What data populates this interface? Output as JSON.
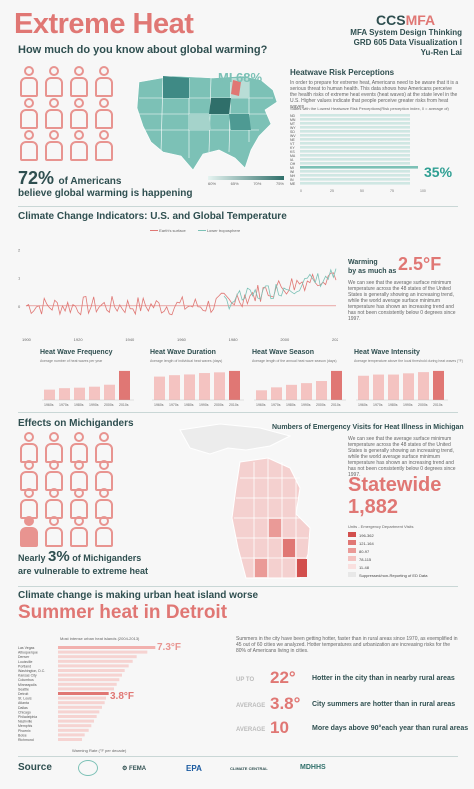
{
  "header": {
    "title": "Extreme Heat",
    "subtitle": "How much do you know about global warming?",
    "logo_left": "CCS",
    "logo_right": "MFA",
    "credits": [
      "MFA System Design Thinking",
      "GRD 605 Data Visualization I",
      "Yu-Ren Lai"
    ]
  },
  "awareness": {
    "pct": "72%",
    "text_1": "of Americans",
    "text_2": "believe global warming is happening",
    "map_label": "MI 68%",
    "legend": [
      "60%",
      "65%",
      "70%",
      "75%"
    ]
  },
  "risk": {
    "title": "Heatwave Risk Perceptions",
    "body": "In order to prepare for extreme heat, Americans need to be aware that it is a serious threat to human health. This data shows how Americans perceive the health risks of extreme heat events (heat waves) at the state level in the U.S. Higher values indicate that people perceive greater risks from heat waves",
    "chart_caption": "States with the Lowest Heatwave Risk Perceptions(Risk perception index, 0 = average of)",
    "highlight": "35%",
    "states": [
      "ND",
      "MN",
      "MT",
      "WY",
      "SD",
      "WV",
      "NE",
      "VT",
      "KY",
      "KS",
      "MA",
      "IA",
      "OH",
      "MI",
      "WI",
      "NH",
      "IN",
      "ME"
    ]
  },
  "climate": {
    "title": "Climate Change Indicators: U.S. and Global Temperature",
    "legend": [
      "Earth's surface",
      "Lower troposphere"
    ],
    "warming_label_1": "Warming",
    "warming_label_2": "by as much as",
    "warming_value": "2.5°F",
    "body": "We can see that the average surface minimum temperature across the 48 states of the United States is generally showing an increasing trend, while the world average surface minimum temperature has shown an increasing trend and has not been consistently below 0 degrees since 1997.",
    "x_ticks": [
      "1900",
      "1920",
      "1940",
      "1960",
      "1980",
      "2000",
      "2020"
    ]
  },
  "heatwave_charts": [
    {
      "title": "Heat Wave Frequency",
      "caption": "Average number of heat waves per year",
      "values": [
        2.1,
        2.4,
        2.5,
        2.7,
        3.1,
        5.9
      ]
    },
    {
      "title": "Heat Wave Duration",
      "caption": "Average length of individual heat waves (days)",
      "values": [
        3.3,
        3.5,
        3.6,
        3.8,
        3.9,
        4.1
      ]
    },
    {
      "title": "Heat Wave Season",
      "caption": "Average length of the annual heat wave season (days)",
      "values": [
        23,
        30,
        36,
        40,
        45,
        69
      ]
    },
    {
      "title": "Heat Wave Intensity",
      "caption": "Average temperature above the local threshold during heat waves (°F)",
      "values": [
        2.0,
        2.1,
        2.1,
        2.2,
        2.3,
        2.4
      ]
    }
  ],
  "decades": [
    "1960s",
    "1970s",
    "1980s",
    "1990s",
    "2000s",
    "2010s"
  ],
  "michigan": {
    "title": "Effects on Michiganders",
    "er_title": "Numbers of Emergency Visits for Heat Illness in Michigan",
    "er_body": "We can see that the average surface minimum temperature across the 48 states of the United States is generally showing an increasing trend, while the world average surface minimum temperature has shown an increasing trend and has not been consistently below 0 degrees since 1997.",
    "statewide_label": "Statewide",
    "statewide_value": "1,882",
    "legend_title": "Units - Emergency Department Visits",
    "legend": [
      "196-362",
      "121-164",
      "80-97",
      "78-115",
      "11-48",
      "Suppressed/non-Reporting of ED Data"
    ],
    "pct_pre": "Nearly",
    "pct": "3%",
    "pct_post": "of Michiganders",
    "pct_line2": "are vulnerable to extreme heat"
  },
  "detroit": {
    "kicker": "Climate change is making urban heat island worse",
    "title": "Summer heat in Detroit",
    "chart_caption": "Most intense urban heat islands (2004-2013)",
    "high_label": "7.3°F",
    "mid_label": "3.8°F",
    "x_caption": "Warming Rate (°F per decade)",
    "cities": [
      "Las Vegas",
      "Albuquerque",
      "Denver",
      "Louisville",
      "Portland",
      "Washington, D.C.",
      "Kansas City",
      "Columbus",
      "Minneapolis",
      "Seattle",
      "Detroit",
      "St. Louis",
      "Atlanta",
      "Dallas",
      "Chicago",
      "Philadelphia",
      "Nashville",
      "Memphis",
      "Phoenix",
      "Boise",
      "Richmond"
    ],
    "values": [
      7.3,
      6.7,
      5.9,
      5.6,
      5.3,
      5.0,
      4.8,
      4.6,
      4.4,
      4.2,
      3.8,
      3.6,
      3.5,
      3.3,
      3.1,
      2.9,
      2.7,
      2.5,
      2.3,
      2.0,
      1.8
    ],
    "intro": "Summers in the city have been getting hotter, faster than in rural areas since 1970, as exemplified in 45 out of 60 cities we analyzed. Hotter temperatures and urbanization are increasing risks for the 80% of Americans living in cities.",
    "stats": [
      {
        "label": "UP TO",
        "value": "22°",
        "desc": "Hotter in the city than in nearby rural areas"
      },
      {
        "label": "AVERAGE",
        "value": "3.8°",
        "desc": "City summers are hotter than in rural areas"
      },
      {
        "label": "AVERAGE",
        "value": "10",
        "desc": "More days above 90°each year than rural areas"
      }
    ]
  },
  "source": {
    "title": "Source",
    "logos": [
      "FEMA",
      "EPA",
      "CLIMATE CENTRAL",
      "MDHHS"
    ]
  },
  "colors": {
    "accent": "#e07774",
    "teal": "#2f4f50",
    "pink": "#e89490",
    "mint": "#7cc1b6"
  }
}
